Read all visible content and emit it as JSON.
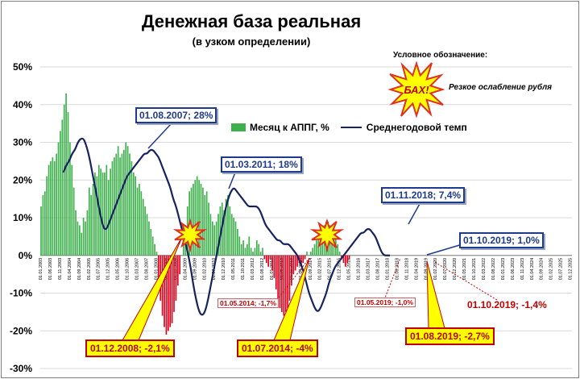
{
  "title": "Денежная база реальная",
  "subtitle": "(в узком определении)",
  "legend_note": "Условное обозначение:",
  "bah": {
    "word": "БАХ!",
    "label": "Резкое ослабление рубля"
  },
  "legend": {
    "bars": "Месяц к АППГ, %",
    "line": "Среднегодовой темп"
  },
  "colors": {
    "bar_pos": "#3db04b",
    "bar_neg": "#e0001b",
    "line": "#17235e",
    "grid": "#d9d9d9",
    "star_fill": "#ffff00",
    "star_stroke": "#e03020"
  },
  "callouts": {
    "c2007": "01.08.2007; 28%",
    "c2011": "01.03.2011; 18%",
    "c2018": "01.11.2018; 7,4%",
    "c2019oct": "01.10.2019; 1,0%",
    "c2008": "01.12.2008; -2,1%",
    "c2014jul": "01.07.2014; -4%",
    "c2019aug": "01.08.2019; -2,7%",
    "c2014may": "01.05.2014; -1,7%",
    "c2019may": "01.05.2019; -1,0%",
    "c2019octneg": "01.10.2019; -1,4%"
  },
  "chart_data": {
    "type": "bar",
    "ylim": [
      -30,
      50
    ],
    "yticks": [
      "-30%",
      "-20%",
      "-10%",
      "0%",
      "10%",
      "20%",
      "30%",
      "40%",
      "50%"
    ],
    "xlabels": [
      "01.01.2003",
      "01.06.2003",
      "01.11.2003",
      "01.04.2004",
      "01.09.2004",
      "01.02.2005",
      "01.07.2005",
      "01.12.2005",
      "01.05.2006",
      "01.10.2006",
      "01.03.2007",
      "01.08.2007",
      "01.01.2008",
      "01.06.2008",
      "01.11.2008",
      "01.04.2009",
      "01.09.2009",
      "01.02.2010",
      "01.07.2010",
      "01.12.2010",
      "01.05.2011",
      "01.10.2011",
      "01.03.2012",
      "01.08.2012",
      "01.01.2013",
      "01.06.2013",
      "01.11.2013",
      "01.04.2014",
      "01.09.2014",
      "01.02.2015",
      "01.07.2015",
      "01.12.2015",
      "01.05.2016",
      "01.10.2016",
      "01.03.2017",
      "01.08.2017",
      "01.01.2018",
      "01.06.2018",
      "01.11.2018",
      "01.04.2019",
      "01.09.2019",
      "01.02.2020",
      "01.07.2020",
      "01.12.2020",
      "01.05.2021",
      "01.10.2021",
      "01.03.2022",
      "01.08.2022",
      "01.01.2023",
      "01.06.2023",
      "01.11.2023",
      "01.04.2024",
      "01.09.2024",
      "01.02.2025",
      "01.07.2025",
      "01.12.2025"
    ],
    "x_start": "01.01.2003",
    "series": [
      {
        "name": "Месяц к АППГ, %",
        "kind": "bar",
        "values": [
          13,
          16,
          17,
          21,
          24,
          25,
          26,
          25,
          27,
          30,
          33,
          36,
          40,
          43,
          38,
          30,
          24,
          18,
          12,
          9,
          8,
          6,
          10,
          9,
          12,
          18,
          16,
          19,
          22,
          21,
          24,
          23,
          22,
          22,
          24,
          20,
          23,
          25,
          26,
          27,
          29,
          26,
          27,
          28,
          30,
          29,
          27,
          25,
          22,
          21,
          18,
          19,
          17,
          15,
          13,
          11,
          9,
          7,
          5,
          3,
          1,
          -8,
          -12,
          -16,
          -19,
          -21,
          -20,
          -19,
          -18,
          -15,
          -12,
          -8,
          -5,
          0,
          3,
          8,
          13,
          17,
          18,
          19,
          20,
          21,
          20,
          19,
          18,
          16,
          17,
          14,
          11,
          9,
          8,
          9,
          11,
          13,
          14,
          12,
          15,
          16,
          13,
          11,
          10,
          9,
          7,
          5,
          3,
          4,
          2,
          3,
          5,
          2,
          1,
          2,
          4,
          3,
          1,
          2,
          -1,
          -2,
          -3,
          -1,
          -4,
          -6,
          -9,
          -12,
          -14,
          -15,
          -16,
          -15,
          -14,
          -12,
          -8,
          -5,
          -4,
          -3,
          -2,
          -3,
          -2,
          -1,
          1,
          0,
          1,
          2,
          3,
          4,
          5,
          6,
          7,
          8,
          9,
          9,
          8,
          7,
          6,
          5,
          3,
          1,
          -1,
          -2,
          -3,
          -2,
          -1
        ]
      },
      {
        "name": "Среднегодовой темп",
        "kind": "line",
        "values": [
          22,
          24,
          25,
          27,
          28,
          30,
          31,
          31,
          29,
          26,
          22,
          18,
          14,
          10,
          7,
          7,
          9,
          11,
          13,
          15,
          17,
          19,
          21,
          22,
          23,
          24,
          25,
          26,
          27,
          27,
          28,
          28,
          27,
          26,
          24,
          22,
          20,
          18,
          15,
          13,
          10,
          7,
          4,
          1,
          -3,
          -8,
          -12,
          -15,
          -16,
          -15,
          -12,
          -8,
          -4,
          0,
          4,
          8,
          12,
          15,
          17,
          18,
          17,
          16,
          15,
          14,
          13,
          13,
          13,
          13,
          12,
          10,
          8,
          7,
          6,
          5,
          4,
          4,
          3,
          3,
          3,
          2,
          1,
          0,
          -2,
          -4,
          -7,
          -10,
          -12,
          -14,
          -15,
          -14,
          -12,
          -10,
          -7,
          -5,
          -3,
          -2,
          -1,
          0,
          1,
          2,
          3,
          4,
          5,
          6,
          6,
          7,
          7,
          6,
          5,
          3,
          1,
          0,
          0,
          0
        ]
      }
    ]
  }
}
